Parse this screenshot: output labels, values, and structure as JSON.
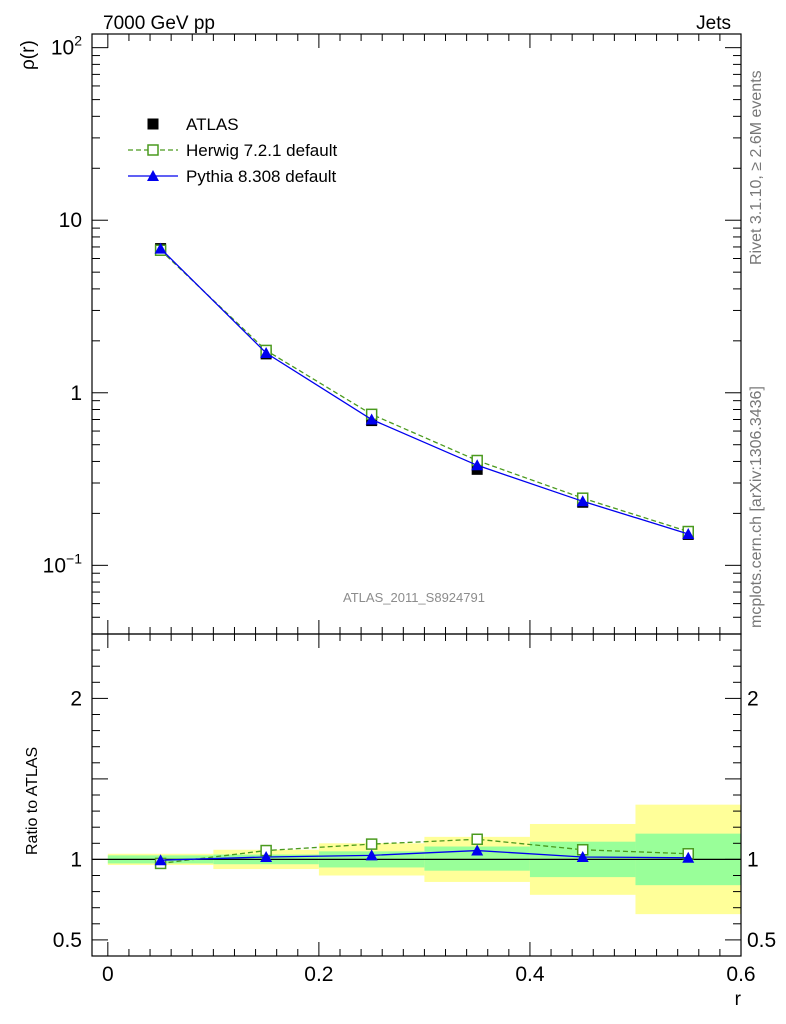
{
  "header": {
    "left_title": "7000 GeV pp",
    "right_title": "Jets"
  },
  "side_labels": {
    "rivet": "Rivet 3.1.10, ≥ 2.6M events",
    "source": "mcplots.cern.ch [arXiv:1306.3436]"
  },
  "chart_data": [
    {
      "type": "line",
      "panel": "main",
      "ylabel": "ρ(r)",
      "yscale": "log",
      "ylim": [
        0.04,
        120
      ],
      "xlim": [
        -0.015,
        0.6
      ],
      "yticks": [
        {
          "value": 0.1,
          "base": "10",
          "exp": "−1"
        },
        {
          "value": 1,
          "base": "1",
          "exp": ""
        },
        {
          "value": 10,
          "base": "10",
          "exp": ""
        },
        {
          "value": 100,
          "base": "10",
          "exp": "2"
        }
      ],
      "annotation": "ATLAS_2011_S8924791",
      "x": [
        0.05,
        0.15,
        0.25,
        0.35,
        0.45,
        0.55
      ],
      "series": [
        {
          "name": "ATLAS",
          "marker": "filled-square",
          "color": "#000000",
          "values": [
            6.85,
            1.68,
            0.69,
            0.36,
            0.232,
            0.151
          ]
        },
        {
          "name": "Herwig 7.2.1 default",
          "marker": "open-square",
          "color": "#4a9a1e",
          "dash": true,
          "values": [
            6.7,
            1.76,
            0.75,
            0.405,
            0.245,
            0.157
          ]
        },
        {
          "name": "Pythia 8.308 default",
          "marker": "filled-triangle",
          "color": "#0000ee",
          "values": [
            6.85,
            1.7,
            0.7,
            0.38,
            0.235,
            0.152
          ]
        }
      ],
      "legend": "top-left"
    },
    {
      "type": "line",
      "panel": "ratio",
      "ylabel": "Ratio to ATLAS",
      "xlabel": "r",
      "ylim": [
        0.4,
        2.4
      ],
      "yticks": [
        0.5,
        1,
        2
      ],
      "xticks": [
        0,
        0.2,
        0.4,
        0.6
      ],
      "xtick_labels": [
        "0",
        "0.2",
        "0.4",
        "0.6"
      ],
      "bands": [
        {
          "x0": 0.0,
          "x1": 0.1,
          "yellow": [
            0.965,
            1.035
          ],
          "green": [
            0.975,
            1.025
          ]
        },
        {
          "x0": 0.1,
          "x1": 0.2,
          "yellow": [
            0.94,
            1.06
          ],
          "green": [
            0.97,
            1.03
          ]
        },
        {
          "x0": 0.2,
          "x1": 0.3,
          "yellow": [
            0.9,
            1.1
          ],
          "green": [
            0.95,
            1.05
          ]
        },
        {
          "x0": 0.3,
          "x1": 0.4,
          "yellow": [
            0.86,
            1.14
          ],
          "green": [
            0.93,
            1.08
          ]
        },
        {
          "x0": 0.4,
          "x1": 0.5,
          "yellow": [
            0.78,
            1.22
          ],
          "green": [
            0.89,
            1.11
          ]
        },
        {
          "x0": 0.5,
          "x1": 0.6,
          "yellow": [
            0.66,
            1.34
          ],
          "green": [
            0.84,
            1.16
          ]
        }
      ],
      "x": [
        0.05,
        0.15,
        0.25,
        0.35,
        0.45,
        0.55
      ],
      "series": [
        {
          "name": "Herwig 7.2.1 default",
          "marker": "open-square",
          "color": "#4a9a1e",
          "dash": true,
          "values": [
            0.975,
            1.055,
            1.095,
            1.125,
            1.06,
            1.035
          ]
        },
        {
          "name": "Pythia 8.308 default",
          "marker": "filled-triangle",
          "color": "#0000ee",
          "values": [
            0.995,
            1.015,
            1.025,
            1.055,
            1.015,
            1.01
          ]
        }
      ]
    }
  ],
  "colors": {
    "band_yellow": "#ffff99",
    "band_green": "#99ff99",
    "atlas": "#000000",
    "herwig": "#4a9a1e",
    "pythia": "#0000ee"
  }
}
